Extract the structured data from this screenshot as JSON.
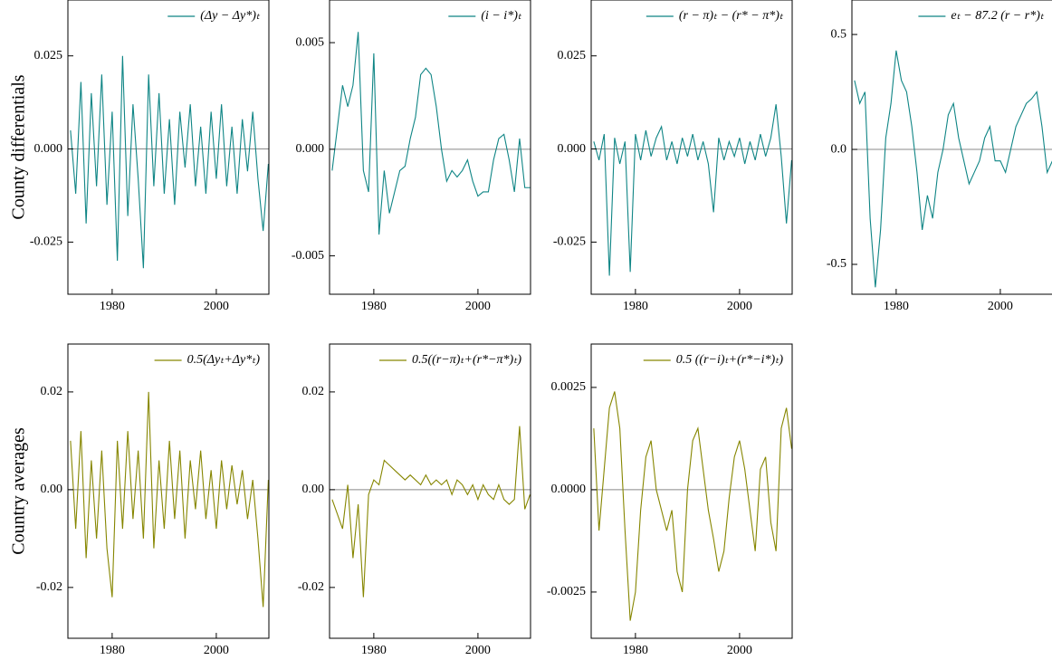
{
  "chart_data": [
    {
      "type": "line",
      "ylabel": "County differentials",
      "x": [
        1972,
        1973,
        1974,
        1975,
        1976,
        1977,
        1978,
        1979,
        1980,
        1981,
        1982,
        1983,
        1984,
        1985,
        1986,
        1987,
        1988,
        1989,
        1990,
        1991,
        1992,
        1993,
        1994,
        1995,
        1996,
        1997,
        1998,
        1999,
        2000,
        2001,
        2002,
        2003,
        2004,
        2005,
        2006,
        2007,
        2008,
        2009,
        2010
      ],
      "series": [
        {
          "name": "(Δy − Δy*)ₜ",
          "color": "#0f8585",
          "values": [
            0.005,
            -0.012,
            0.018,
            -0.02,
            0.015,
            -0.01,
            0.02,
            -0.015,
            0.01,
            -0.03,
            0.025,
            -0.018,
            0.012,
            -0.008,
            -0.032,
            0.02,
            -0.01,
            0.015,
            -0.012,
            0.008,
            -0.015,
            0.01,
            -0.005,
            0.012,
            -0.01,
            0.006,
            -0.012,
            0.01,
            -0.008,
            0.012,
            -0.01,
            0.006,
            -0.012,
            0.008,
            -0.006,
            0.01,
            -0.008,
            -0.022,
            -0.004
          ]
        }
      ],
      "xlim": [
        1971.5,
        2010.1
      ],
      "xticks": [
        1980,
        2000
      ],
      "ylim": [
        -0.039,
        0.04
      ],
      "yticks": [
        -0.025,
        {
          "value": 0,
          "label": "0.000"
        },
        0.025
      ],
      "hline": 0
    },
    {
      "type": "line",
      "x": [
        1972,
        1973,
        1974,
        1975,
        1976,
        1977,
        1978,
        1979,
        1980,
        1981,
        1982,
        1983,
        1984,
        1985,
        1986,
        1987,
        1988,
        1989,
        1990,
        1991,
        1992,
        1993,
        1994,
        1995,
        1996,
        1997,
        1998,
        1999,
        2000,
        2001,
        2002,
        2003,
        2004,
        2005,
        2006,
        2007,
        2008,
        2009,
        2010
      ],
      "series": [
        {
          "name": "(i − i*)ₜ",
          "color": "#0f8585",
          "values": [
            -0.001,
            0.001,
            0.003,
            0.002,
            0.003,
            0.0055,
            -0.001,
            -0.002,
            0.0045,
            -0.004,
            -0.001,
            -0.003,
            -0.002,
            -0.001,
            -0.0008,
            0.0005,
            0.0015,
            0.0035,
            0.0038,
            0.0035,
            0.002,
            0,
            -0.0015,
            -0.001,
            -0.0013,
            -0.001,
            -0.0005,
            -0.0015,
            -0.0022,
            -0.002,
            -0.002,
            -0.0005,
            0.0005,
            0.0007,
            -0.0005,
            -0.002,
            0.0005,
            -0.0018,
            -0.0018
          ]
        }
      ],
      "xlim": [
        1971.5,
        2010.1
      ],
      "xticks": [
        1980,
        2000
      ],
      "ylim": [
        -0.0068,
        0.007
      ],
      "yticks": [
        -0.005,
        {
          "value": 0,
          "label": "0.000"
        },
        0.005
      ],
      "hline": 0
    },
    {
      "type": "line",
      "x": [
        1972,
        1973,
        1974,
        1975,
        1976,
        1977,
        1978,
        1979,
        1980,
        1981,
        1982,
        1983,
        1984,
        1985,
        1986,
        1987,
        1988,
        1989,
        1990,
        1991,
        1992,
        1993,
        1994,
        1995,
        1996,
        1997,
        1998,
        1999,
        2000,
        2001,
        2002,
        2003,
        2004,
        2005,
        2006,
        2007,
        2008,
        2009,
        2010
      ],
      "series": [
        {
          "name": "(r − π)ₜ − (r* − π*)ₜ",
          "color": "#0f8585",
          "values": [
            0.002,
            -0.003,
            0.004,
            -0.034,
            0.003,
            -0.004,
            0.002,
            -0.033,
            0.004,
            -0.003,
            0.005,
            -0.002,
            0.003,
            0.006,
            -0.003,
            0.002,
            -0.004,
            0.003,
            -0.002,
            0.004,
            -0.003,
            0.002,
            -0.004,
            -0.017,
            0.003,
            -0.003,
            0.002,
            -0.002,
            0.003,
            -0.004,
            0.002,
            -0.003,
            0.004,
            -0.002,
            0.003,
            0.012,
            -0.002,
            -0.02,
            -0.003
          ]
        }
      ],
      "xlim": [
        1971.5,
        2010.1
      ],
      "xticks": [
        1980,
        2000
      ],
      "ylim": [
        -0.039,
        0.04
      ],
      "yticks": [
        -0.025,
        {
          "value": 0,
          "label": "0.000"
        },
        0.025
      ],
      "hline": 0
    },
    {
      "type": "line",
      "x": [
        1972,
        1973,
        1974,
        1975,
        1976,
        1977,
        1978,
        1979,
        1980,
        1981,
        1982,
        1983,
        1984,
        1985,
        1986,
        1987,
        1988,
        1989,
        1990,
        1991,
        1992,
        1993,
        1994,
        1995,
        1996,
        1997,
        1998,
        1999,
        2000,
        2001,
        2002,
        2003,
        2004,
        2005,
        2006,
        2007,
        2008,
        2009,
        2010
      ],
      "series": [
        {
          "name": "eₜ − 87.2 (r − r*)ₜ",
          "color": "#0f8585",
          "values": [
            0.3,
            0.2,
            0.25,
            -0.3,
            -0.6,
            -0.35,
            0.05,
            0.2,
            0.43,
            0.3,
            0.25,
            0.1,
            -0.1,
            -0.35,
            -0.2,
            -0.3,
            -0.1,
            0,
            0.15,
            0.2,
            0.05,
            -0.05,
            -0.15,
            -0.1,
            -0.05,
            0.05,
            0.1,
            -0.05,
            -0.05,
            -0.1,
            0,
            0.1,
            0.15,
            0.2,
            0.22,
            0.25,
            0.1,
            -0.1,
            -0.05
          ]
        }
      ],
      "xlim": [
        1971.5,
        2010.1
      ],
      "xticks": [
        1980,
        2000
      ],
      "ylim": [
        -0.63,
        0.65
      ],
      "yticks": [
        -0.5,
        {
          "value": 0,
          "label": "0.0"
        },
        0.5
      ],
      "hline": 0
    },
    {
      "type": "line",
      "ylabel": "Country averages",
      "x": [
        1972,
        1973,
        1974,
        1975,
        1976,
        1977,
        1978,
        1979,
        1980,
        1981,
        1982,
        1983,
        1984,
        1985,
        1986,
        1987,
        1988,
        1989,
        1990,
        1991,
        1992,
        1993,
        1994,
        1995,
        1996,
        1997,
        1998,
        1999,
        2000,
        2001,
        2002,
        2003,
        2004,
        2005,
        2006,
        2007,
        2008,
        2009,
        2010
      ],
      "series": [
        {
          "name": "0.5(Δyₜ+Δy*ₜ)",
          "color": "#868600",
          "values": [
            0.01,
            -0.008,
            0.012,
            -0.014,
            0.006,
            -0.01,
            0.008,
            -0.012,
            -0.022,
            0.01,
            -0.008,
            0.012,
            -0.006,
            0.008,
            -0.01,
            0.02,
            -0.012,
            0.006,
            -0.008,
            0.01,
            -0.006,
            0.008,
            -0.01,
            0.006,
            -0.004,
            0.008,
            -0.006,
            0.004,
            -0.008,
            0.006,
            -0.004,
            0.005,
            -0.003,
            0.004,
            -0.006,
            0.002,
            -0.01,
            -0.024,
            0.002
          ]
        }
      ],
      "xlim": [
        1971.5,
        2010.1
      ],
      "xticks": [
        1980,
        2000
      ],
      "ylim": [
        -0.0304,
        0.0298
      ],
      "yticks": [
        -0.02,
        {
          "value": 0,
          "label": "0.00"
        },
        0.02
      ],
      "hline": 0
    },
    {
      "type": "line",
      "x": [
        1972,
        1973,
        1974,
        1975,
        1976,
        1977,
        1978,
        1979,
        1980,
        1981,
        1982,
        1983,
        1984,
        1985,
        1986,
        1987,
        1988,
        1989,
        1990,
        1991,
        1992,
        1993,
        1994,
        1995,
        1996,
        1997,
        1998,
        1999,
        2000,
        2001,
        2002,
        2003,
        2004,
        2005,
        2006,
        2007,
        2008,
        2009,
        2010
      ],
      "series": [
        {
          "name": "0.5((r−π)ₜ+(r*−π*)ₜ)",
          "color": "#868600",
          "values": [
            -0.002,
            -0.005,
            -0.008,
            0.001,
            -0.014,
            -0.003,
            -0.022,
            -0.001,
            0.002,
            0.001,
            0.006,
            0.005,
            0.004,
            0.003,
            0.002,
            0.003,
            0.002,
            0.001,
            0.003,
            0.001,
            0.002,
            0.001,
            0.002,
            -0.001,
            0.002,
            0.001,
            -0.001,
            0.001,
            -0.002,
            0.001,
            -0.001,
            -0.002,
            0.001,
            -0.002,
            -0.003,
            -0.002,
            0.013,
            -0.004,
            -0.001
          ]
        }
      ],
      "xlim": [
        1971.5,
        2010.1
      ],
      "xticks": [
        1980,
        2000
      ],
      "ylim": [
        -0.0304,
        0.0298
      ],
      "yticks": [
        -0.02,
        {
          "value": 0,
          "label": "0.00"
        },
        0.02
      ],
      "hline": 0
    },
    {
      "type": "line",
      "x": [
        1972,
        1973,
        1974,
        1975,
        1976,
        1977,
        1978,
        1979,
        1980,
        1981,
        1982,
        1983,
        1984,
        1985,
        1986,
        1987,
        1988,
        1989,
        1990,
        1991,
        1992,
        1993,
        1994,
        1995,
        1996,
        1997,
        1998,
        1999,
        2000,
        2001,
        2002,
        2003,
        2004,
        2005,
        2006,
        2007,
        2008,
        2009,
        2010
      ],
      "series": [
        {
          "name": "0.5 ((r−i)ₜ+(r*−i*)ₜ)",
          "color": "#868600",
          "values": [
            0.0015,
            -0.001,
            0.0005,
            0.002,
            0.0024,
            0.0015,
            -0.001,
            -0.0032,
            -0.0025,
            -0.0005,
            0.0008,
            0.0012,
            0,
            -0.0005,
            -0.001,
            -0.0005,
            -0.002,
            -0.0025,
            0,
            0.0012,
            0.0015,
            0.0005,
            -0.0005,
            -0.0012,
            -0.002,
            -0.0015,
            -0.0002,
            0.0008,
            0.0012,
            0.0005,
            -0.0005,
            -0.0015,
            0.0005,
            0.0008,
            -0.0008,
            -0.0015,
            0.0015,
            0.002,
            0.001
          ]
        }
      ],
      "xlim": [
        1971.5,
        2010.1
      ],
      "xticks": [
        1980,
        2000
      ],
      "ylim": [
        -0.00363,
        0.00356
      ],
      "yticks": [
        -0.0025,
        {
          "value": 0,
          "label": "0.0000"
        },
        0.0025
      ],
      "hline": 0
    }
  ]
}
